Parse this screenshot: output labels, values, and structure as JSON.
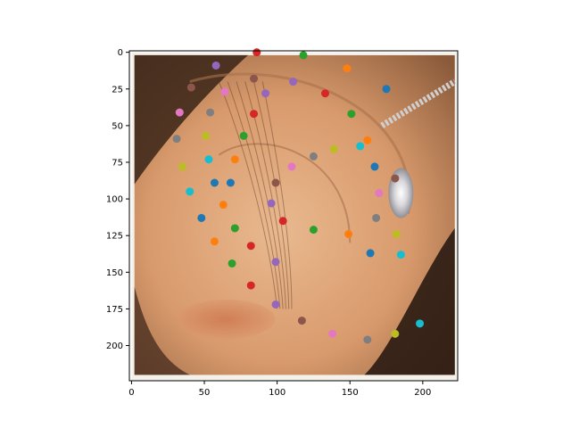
{
  "chart_data": {
    "type": "scatter",
    "title": "",
    "xlabel": "",
    "ylabel": "",
    "xlim": [
      -1.5,
      224
    ],
    "ylim": [
      224,
      -1
    ],
    "x_ticks": [
      0,
      50,
      100,
      150,
      200
    ],
    "y_ticks": [
      0,
      25,
      50,
      75,
      100,
      125,
      150,
      175,
      200
    ],
    "background_image": "close-up photo of a human ear with a sparkling earring and dark hair strands",
    "grid": false,
    "legend": "none",
    "palette": [
      "#1f77b4",
      "#ff7f0e",
      "#2ca02c",
      "#d62728",
      "#9467bd",
      "#8c564b",
      "#e377c2",
      "#7f7f7f",
      "#bcbd22",
      "#17becf"
    ],
    "points": [
      {
        "x": 86,
        "y": 0,
        "color": "#d62728"
      },
      {
        "x": 118,
        "y": 2,
        "color": "#2ca02c"
      },
      {
        "x": 58,
        "y": 9,
        "color": "#9467bd"
      },
      {
        "x": 148,
        "y": 11,
        "color": "#ff7f0e"
      },
      {
        "x": 84,
        "y": 18,
        "color": "#8c564b"
      },
      {
        "x": 111,
        "y": 20,
        "color": "#9467bd"
      },
      {
        "x": 41,
        "y": 24,
        "color": "#8c564b"
      },
      {
        "x": 175,
        "y": 25,
        "color": "#1f77b4"
      },
      {
        "x": 64,
        "y": 27,
        "color": "#e377c2"
      },
      {
        "x": 92,
        "y": 28,
        "color": "#9467bd"
      },
      {
        "x": 133,
        "y": 28,
        "color": "#d62728"
      },
      {
        "x": 33,
        "y": 41,
        "color": "#e377c2"
      },
      {
        "x": 54,
        "y": 41,
        "color": "#7f7f7f"
      },
      {
        "x": 84,
        "y": 42,
        "color": "#d62728"
      },
      {
        "x": 151,
        "y": 42,
        "color": "#2ca02c"
      },
      {
        "x": 31,
        "y": 59,
        "color": "#7f7f7f"
      },
      {
        "x": 51,
        "y": 57,
        "color": "#bcbd22"
      },
      {
        "x": 77,
        "y": 57,
        "color": "#2ca02c"
      },
      {
        "x": 162,
        "y": 60,
        "color": "#ff7f0e"
      },
      {
        "x": 157,
        "y": 64,
        "color": "#17becf"
      },
      {
        "x": 139,
        "y": 66,
        "color": "#bcbd22"
      },
      {
        "x": 125,
        "y": 71,
        "color": "#7f7f7f"
      },
      {
        "x": 53,
        "y": 73,
        "color": "#17becf"
      },
      {
        "x": 71,
        "y": 73,
        "color": "#ff7f0e"
      },
      {
        "x": 35,
        "y": 78,
        "color": "#bcbd22"
      },
      {
        "x": 110,
        "y": 78,
        "color": "#e377c2"
      },
      {
        "x": 167,
        "y": 78,
        "color": "#1f77b4"
      },
      {
        "x": 181,
        "y": 86,
        "color": "#8c564b"
      },
      {
        "x": 57,
        "y": 89,
        "color": "#1f77b4"
      },
      {
        "x": 68,
        "y": 89,
        "color": "#1f77b4"
      },
      {
        "x": 99,
        "y": 89,
        "color": "#8c564b"
      },
      {
        "x": 40,
        "y": 95,
        "color": "#17becf"
      },
      {
        "x": 170,
        "y": 96,
        "color": "#e377c2"
      },
      {
        "x": 63,
        "y": 104,
        "color": "#ff7f0e"
      },
      {
        "x": 96,
        "y": 103,
        "color": "#9467bd"
      },
      {
        "x": 48,
        "y": 113,
        "color": "#1f77b4"
      },
      {
        "x": 104,
        "y": 115,
        "color": "#d62728"
      },
      {
        "x": 168,
        "y": 113,
        "color": "#7f7f7f"
      },
      {
        "x": 71,
        "y": 120,
        "color": "#2ca02c"
      },
      {
        "x": 125,
        "y": 121,
        "color": "#2ca02c"
      },
      {
        "x": 149,
        "y": 124,
        "color": "#ff7f0e"
      },
      {
        "x": 182,
        "y": 124,
        "color": "#bcbd22"
      },
      {
        "x": 57,
        "y": 129,
        "color": "#ff7f0e"
      },
      {
        "x": 82,
        "y": 132,
        "color": "#d62728"
      },
      {
        "x": 164,
        "y": 137,
        "color": "#1f77b4"
      },
      {
        "x": 185,
        "y": 138,
        "color": "#17becf"
      },
      {
        "x": 69,
        "y": 144,
        "color": "#2ca02c"
      },
      {
        "x": 99,
        "y": 143,
        "color": "#9467bd"
      },
      {
        "x": 82,
        "y": 159,
        "color": "#d62728"
      },
      {
        "x": 99,
        "y": 172,
        "color": "#9467bd"
      },
      {
        "x": 117,
        "y": 183,
        "color": "#8c564b"
      },
      {
        "x": 198,
        "y": 185,
        "color": "#17becf"
      },
      {
        "x": 138,
        "y": 192,
        "color": "#e377c2"
      },
      {
        "x": 181,
        "y": 192,
        "color": "#bcbd22"
      },
      {
        "x": 162,
        "y": 196,
        "color": "#7f7f7f"
      }
    ]
  }
}
